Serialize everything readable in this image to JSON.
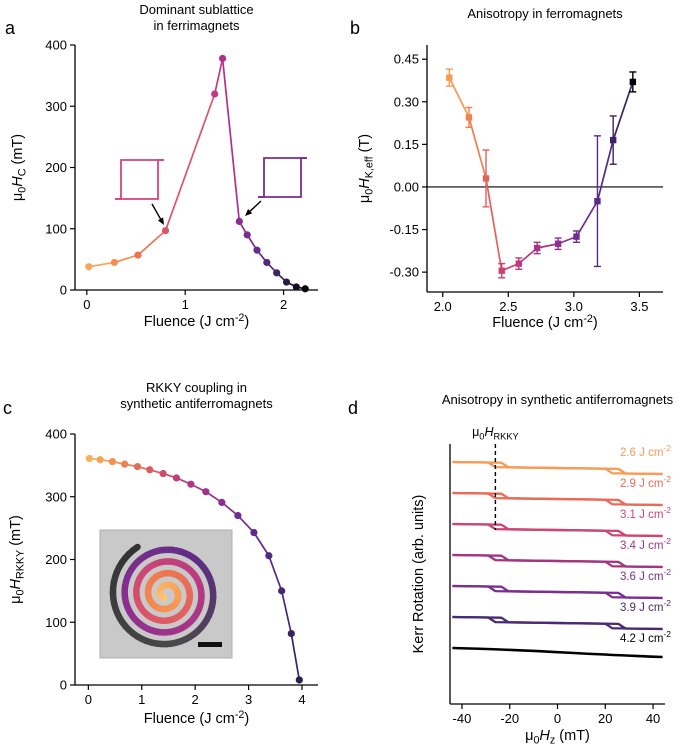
{
  "figure": {
    "background": "#ffffff",
    "description": "Four-panel scientific figure: laser fluence control of magnetic properties"
  },
  "chart_data": [
    {
      "id": "a",
      "panel_label": "a",
      "type": "line",
      "title_lines": [
        "Dominant sublattice",
        "in ferrimagnets"
      ],
      "xlabel_segments": [
        [
          "Fluence (J cm",
          ""
        ],
        [
          "-2",
          "p"
        ],
        [
          ")",
          ""
        ]
      ],
      "ylabel_segments": [
        [
          "μ",
          ""
        ],
        [
          "0",
          "s"
        ],
        [
          "H",
          "i"
        ],
        [
          "C",
          "s"
        ],
        [
          " (mT)",
          ""
        ]
      ],
      "xlim": [
        -0.12,
        2.35
      ],
      "ylim": [
        0,
        400
      ],
      "xticks": [
        [
          0,
          "0"
        ],
        [
          1,
          "1"
        ],
        [
          2,
          "2"
        ]
      ],
      "yticks": [
        [
          0,
          "0"
        ],
        [
          100,
          "100"
        ],
        [
          200,
          "200"
        ],
        [
          300,
          "300"
        ],
        [
          400,
          "400"
        ]
      ],
      "points": [
        {
          "x": 0.02,
          "y": 38,
          "color": "#F9A65C"
        },
        {
          "x": 0.28,
          "y": 45,
          "color": "#F39050"
        },
        {
          "x": 0.52,
          "y": 57,
          "color": "#EC7450"
        },
        {
          "x": 0.8,
          "y": 97,
          "color": "#DB5568"
        },
        {
          "x": 1.3,
          "y": 320,
          "color": "#C23A82"
        },
        {
          "x": 1.38,
          "y": 378,
          "color": "#B1308D"
        },
        {
          "x": 1.55,
          "y": 112,
          "color": "#8A2D92"
        },
        {
          "x": 1.63,
          "y": 90,
          "color": "#7A2C90"
        },
        {
          "x": 1.73,
          "y": 65,
          "color": "#672B8C"
        },
        {
          "x": 1.83,
          "y": 45,
          "color": "#512A7E"
        },
        {
          "x": 1.93,
          "y": 28,
          "color": "#3C2562"
        },
        {
          "x": 2.03,
          "y": 13,
          "color": "#281A42"
        },
        {
          "x": 2.13,
          "y": 5,
          "color": "#150E23"
        },
        {
          "x": 2.22,
          "y": 2,
          "color": "#0A0710"
        }
      ],
      "insets": [
        {
          "type": "square-hysteresis-loop",
          "color": "#D8437B"
        },
        {
          "type": "square-hysteresis-loop",
          "color": "#7B2D90"
        }
      ]
    },
    {
      "id": "b",
      "panel_label": "b",
      "type": "line",
      "title_lines": [
        "Anisotropy in ferromagnets"
      ],
      "xlabel_segments": [
        [
          "Fluence (J cm",
          ""
        ],
        [
          "-2",
          "p"
        ],
        [
          ")",
          ""
        ]
      ],
      "ylabel_segments": [
        [
          "μ",
          ""
        ],
        [
          "0",
          "s"
        ],
        [
          "H",
          "i"
        ],
        [
          "K,eff",
          "s"
        ],
        [
          " (T)",
          ""
        ]
      ],
      "xlim": [
        1.88,
        3.68
      ],
      "ylim": [
        -0.37,
        0.5
      ],
      "xticks": [
        [
          2.0,
          "2.0"
        ],
        [
          2.5,
          "2.5"
        ],
        [
          3.0,
          "3.0"
        ],
        [
          3.5,
          "3.5"
        ]
      ],
      "yticks": [
        [
          0.45,
          "0.45"
        ],
        [
          0.3,
          "0.30"
        ],
        [
          0.15,
          "0.15"
        ],
        [
          0,
          "0.00"
        ],
        [
          -0.15,
          "-0.15"
        ],
        [
          -0.3,
          "-0.30"
        ]
      ],
      "zero_line": true,
      "error_bars": true,
      "marker": "square",
      "points": [
        {
          "x": 2.05,
          "y": 0.385,
          "err": 0.03,
          "color": "#F79A52"
        },
        {
          "x": 2.2,
          "y": 0.245,
          "err": 0.035,
          "color": "#F08050"
        },
        {
          "x": 2.33,
          "y": 0.03,
          "err": 0.1,
          "color": "#E4615A"
        },
        {
          "x": 2.45,
          "y": -0.295,
          "err": 0.025,
          "color": "#D04070"
        },
        {
          "x": 2.58,
          "y": -0.27,
          "err": 0.02,
          "color": "#BC3A7E"
        },
        {
          "x": 2.72,
          "y": -0.215,
          "err": 0.02,
          "color": "#A83389"
        },
        {
          "x": 2.88,
          "y": -0.2,
          "err": 0.02,
          "color": "#8E2F90"
        },
        {
          "x": 3.02,
          "y": -0.175,
          "err": 0.02,
          "color": "#722C90"
        },
        {
          "x": 3.18,
          "y": -0.05,
          "err": 0.23,
          "color": "#5A2B86"
        },
        {
          "x": 3.3,
          "y": 0.165,
          "err": 0.085,
          "color": "#3A2366"
        },
        {
          "x": 3.45,
          "y": 0.37,
          "err": 0.035,
          "color": "#000000"
        }
      ]
    },
    {
      "id": "c",
      "panel_label": "c",
      "type": "line",
      "title_lines": [
        "RKKY coupling in",
        "synthetic antiferromagnets"
      ],
      "xlabel_segments": [
        [
          "Fluence (J cm",
          ""
        ],
        [
          "-2",
          "p"
        ],
        [
          ")",
          ""
        ]
      ],
      "ylabel_segments": [
        [
          "μ",
          ""
        ],
        [
          "0",
          "s"
        ],
        [
          "H",
          "i"
        ],
        [
          "RKKY",
          "s"
        ],
        [
          " (mT)",
          ""
        ]
      ],
      "xlim": [
        -0.25,
        4.3
      ],
      "ylim": [
        0,
        400
      ],
      "xticks": [
        [
          0,
          "0"
        ],
        [
          1,
          "1"
        ],
        [
          2,
          "2"
        ],
        [
          3,
          "3"
        ],
        [
          4,
          "4"
        ]
      ],
      "yticks": [
        [
          0,
          "0"
        ],
        [
          100,
          "100"
        ],
        [
          200,
          "200"
        ],
        [
          300,
          "300"
        ],
        [
          400,
          "400"
        ]
      ],
      "points": [
        {
          "x": 0.02,
          "y": 361,
          "color": "#F9B25C"
        },
        {
          "x": 0.22,
          "y": 359,
          "color": "#F6A356"
        },
        {
          "x": 0.45,
          "y": 356,
          "color": "#F19252"
        },
        {
          "x": 0.68,
          "y": 352,
          "color": "#EB8052"
        },
        {
          "x": 0.92,
          "y": 348,
          "color": "#E36E58"
        },
        {
          "x": 1.15,
          "y": 343,
          "color": "#D95C62"
        },
        {
          "x": 1.4,
          "y": 337,
          "color": "#CD4C6E"
        },
        {
          "x": 1.65,
          "y": 330,
          "color": "#BF3F7A"
        },
        {
          "x": 1.92,
          "y": 320,
          "color": "#B03786"
        },
        {
          "x": 2.2,
          "y": 308,
          "color": "#9E318D"
        },
        {
          "x": 2.5,
          "y": 291,
          "color": "#8A2E91"
        },
        {
          "x": 2.8,
          "y": 270,
          "color": "#752C90"
        },
        {
          "x": 3.1,
          "y": 243,
          "color": "#622B8B"
        },
        {
          "x": 3.38,
          "y": 206,
          "color": "#522A80"
        },
        {
          "x": 3.62,
          "y": 150,
          "color": "#452870"
        },
        {
          "x": 3.8,
          "y": 82,
          "color": "#3A245F"
        },
        {
          "x": 3.95,
          "y": 8,
          "color": "#2F1F4C"
        }
      ],
      "inset": {
        "type": "micrograph",
        "content": "spiral-shaped device on gray background with black scale bar",
        "palette": [
          [
            0,
            "#FDC87E"
          ],
          [
            0.16,
            "#F8A156"
          ],
          [
            0.32,
            "#EF7A4F"
          ],
          [
            0.46,
            "#DE5866"
          ],
          [
            0.6,
            "#BB3A80"
          ],
          [
            0.72,
            "#8E2F90"
          ],
          [
            0.82,
            "#5E2C85"
          ],
          [
            0.9,
            "#4A4A4A"
          ],
          [
            1,
            "#333333"
          ]
        ],
        "scalebar": true
      }
    },
    {
      "id": "d",
      "panel_label": "d",
      "type": "hysteresis-series",
      "title_lines": [
        "Anisotropy in synthetic antiferromagnets"
      ],
      "xlabel_segments": [
        [
          "μ",
          ""
        ],
        [
          "0",
          "s"
        ],
        [
          "H",
          "i"
        ],
        [
          "z",
          "s"
        ],
        [
          " (mT)",
          ""
        ]
      ],
      "ylabel_segments": [
        [
          "Kerr Rotation (arb. units)",
          ""
        ]
      ],
      "xlim": [
        -45,
        45
      ],
      "ylim": [
        0,
        1
      ],
      "xticks": [
        [
          -40,
          "-40"
        ],
        [
          -20,
          "-20"
        ],
        [
          0,
          "0"
        ],
        [
          20,
          "20"
        ],
        [
          40,
          "40"
        ]
      ],
      "unit_prefix": " J cm",
      "unit_exponent": "-2",
      "loop_centers_mT": [
        -25,
        24
      ],
      "curves": [
        {
          "fluence": "2.6",
          "color": "#F89B57",
          "has_loops": true
        },
        {
          "fluence": "2.9",
          "color": "#E96A57",
          "has_loops": true
        },
        {
          "fluence": "3.1",
          "color": "#CC4573",
          "has_loops": true
        },
        {
          "fluence": "3.4",
          "color": "#A53480",
          "has_loops": true
        },
        {
          "fluence": "3.6",
          "color": "#7C2D90",
          "has_loops": true
        },
        {
          "fluence": "3.9",
          "color": "#4A2A76",
          "has_loops": true
        },
        {
          "fluence": "4.2",
          "color": "#000000",
          "has_loops": false
        }
      ],
      "annotation": {
        "x": -26,
        "segments": [
          [
            "μ",
            ""
          ],
          [
            "0",
            "s"
          ],
          [
            "H",
            "i"
          ],
          [
            "RKKY",
            "s"
          ]
        ]
      }
    }
  ]
}
